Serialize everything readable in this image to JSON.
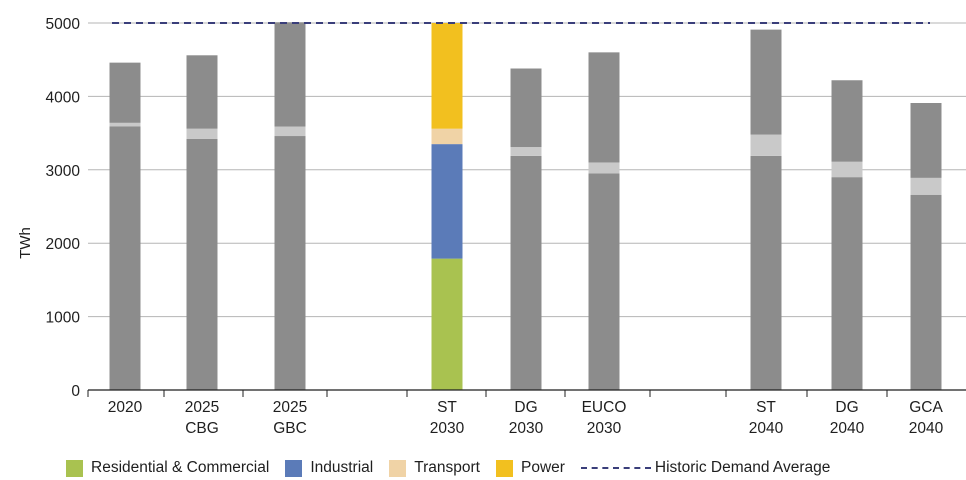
{
  "chart_data": {
    "type": "bar",
    "ylabel": "TWh",
    "ylim": [
      0,
      5000
    ],
    "yticks": [
      "0",
      "1000",
      "2000",
      "3000",
      "4000",
      "5000"
    ],
    "categories": [
      {
        "line1": "2020",
        "line2": ""
      },
      {
        "line1": "2025",
        "line2": "CBG"
      },
      {
        "line1": "2025",
        "line2": "GBC"
      },
      {
        "line1": "ST",
        "line2": "2030"
      },
      {
        "line1": "DG",
        "line2": "2030"
      },
      {
        "line1": "EUCO",
        "line2": "2030"
      },
      {
        "line1": "ST",
        "line2": "2040"
      },
      {
        "line1": "DG",
        "line2": "2040"
      },
      {
        "line1": "GCA",
        "line2": "2040"
      }
    ],
    "series": [
      {
        "name": "Residential & Commercial",
        "color": "#a9c250",
        "values": [
          3590,
          3420,
          3460,
          1790,
          3190,
          2950,
          3190,
          2900,
          2660
        ]
      },
      {
        "name": "Industrial",
        "color": "#5b7bb8",
        "values": [
          0,
          0,
          0,
          1560,
          0,
          0,
          0,
          0,
          0
        ]
      },
      {
        "name": "Transport",
        "color": "#f0d3a6",
        "values": [
          50,
          140,
          130,
          210,
          120,
          150,
          290,
          210,
          230
        ]
      },
      {
        "name": "Power",
        "color": "#f2c01f",
        "values": [
          820,
          1000,
          1420,
          1440,
          1070,
          1500,
          1430,
          1110,
          1020
        ]
      }
    ],
    "highlight_index": 3,
    "historic_demand_average": 5000,
    "reference_line_label": "Historic Demand Average",
    "reference_line_color": "#3a3e7a",
    "greyed_colors": [
      "#8c8c8c",
      "#8c8c8c",
      "#c9c9c9",
      "#8c8c8c"
    ],
    "grid": true
  }
}
